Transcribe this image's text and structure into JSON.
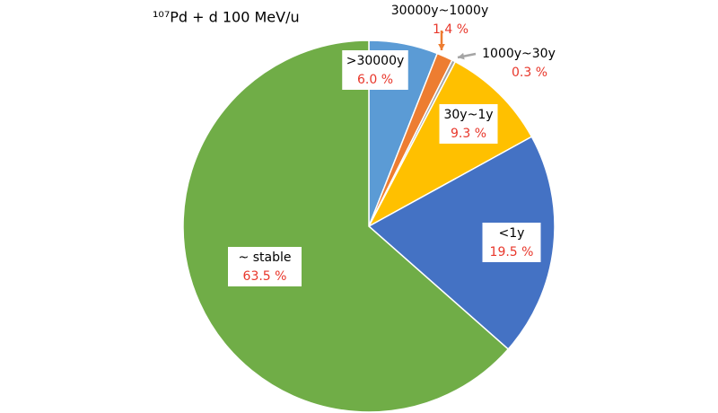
{
  "chart_data": {
    "type": "pie",
    "title": "¹⁰⁷Pd + d 100 MeV/u",
    "categories": [
      ">30000y",
      "30000y~1000y",
      "1000y~30y",
      "30y~1y",
      "<1y",
      "~ stable"
    ],
    "values": [
      6.0,
      1.4,
      0.3,
      9.3,
      19.5,
      63.5
    ],
    "value_labels": [
      "6.0 %",
      "1.4 %",
      "0.3 %",
      "9.3 %",
      "19.5 %",
      "63.5 %"
    ],
    "colors": [
      "#5b9bd5",
      "#ed7d31",
      "#a5a5a5",
      "#ffc000",
      "#4472c4",
      "#70ad47"
    ]
  }
}
